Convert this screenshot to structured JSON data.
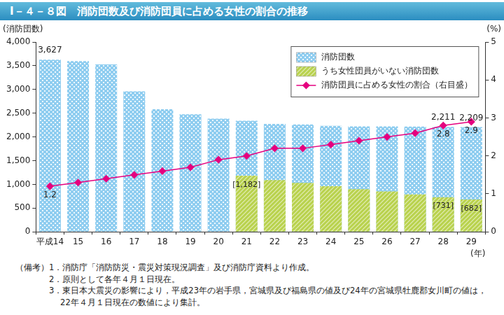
{
  "chart_data": {
    "type": "bar",
    "title": "Ⅰ－４－８図　消防団数及び消防団員に占める女性の割合の推移",
    "y_label": "(消防団数)",
    "y2_label": "(%)",
    "x_label": "(年)",
    "categories": [
      "平成14",
      "15",
      "16",
      "17",
      "18",
      "19",
      "20",
      "21",
      "22",
      "23",
      "24",
      "25",
      "26",
      "27",
      "28",
      "29"
    ],
    "series": [
      {
        "name": "消防団数",
        "type": "bar",
        "color": "#8fcdf0",
        "values": [
          3627,
          3598,
          3527,
          2961,
          2584,
          2477,
          2386,
          2341,
          2275,
          2265,
          2234,
          2224,
          2221,
          2219,
          2211,
          2209
        ],
        "data_labels": true,
        "value_labels": [
          "3,627",
          null,
          null,
          null,
          null,
          null,
          null,
          null,
          null,
          null,
          null,
          null,
          null,
          null,
          "2,211",
          "2,209"
        ]
      },
      {
        "name": "うち女性団員がいない消防団数",
        "type": "bar",
        "color": "#b9d24e",
        "values": [
          null,
          null,
          null,
          null,
          null,
          null,
          null,
          1182,
          1090,
          1030,
          960,
          900,
          850,
          790,
          731,
          682
        ],
        "data_labels": true,
        "value_labels": [
          null,
          null,
          null,
          null,
          null,
          null,
          null,
          "[1,182]",
          null,
          null,
          null,
          null,
          null,
          null,
          "[731]",
          "[682]"
        ]
      },
      {
        "name": "消防団員に占める女性の割合（右目盛）",
        "type": "line",
        "axis": "y2",
        "color": "#e5007f",
        "marker": "diamond",
        "values": [
          1.2,
          1.3,
          1.4,
          1.5,
          1.6,
          1.7,
          1.9,
          2.0,
          2.2,
          2.2,
          2.3,
          2.4,
          2.5,
          2.6,
          2.8,
          2.9
        ],
        "data_labels": true,
        "value_labels": [
          "1.2",
          null,
          null,
          null,
          null,
          null,
          null,
          null,
          null,
          null,
          null,
          null,
          null,
          null,
          "2.8",
          "2.9"
        ]
      }
    ],
    "ylim": [
      0,
      4000
    ],
    "yticks": [
      0,
      500,
      {
        "value": 1000,
        "label": "1,000"
      },
      {
        "value": 1500,
        "label": "1,500"
      },
      {
        "value": 2000,
        "label": "2,000"
      },
      {
        "value": 2500,
        "label": "2,500"
      },
      {
        "value": 3000,
        "label": "3,000"
      },
      {
        "value": 3500,
        "label": "3,500"
      },
      {
        "value": 4000,
        "label": "4,000"
      }
    ],
    "y2lim": [
      0,
      5
    ],
    "y2ticks": [
      0,
      1,
      2,
      3,
      4,
      5
    ],
    "grid": false,
    "legend": "upper right",
    "notes_label": "（備考）",
    "notes": [
      "1．消防庁「消防防災・震災対策現況調査」及び消防庁資料より作成。",
      "2．原則として各年４月１日現在。",
      "3．東日本大震災の影響により，平成23年の岩手県，宮城県及び福島県の値及び24年の宮城県牡鹿郡女川町の値は，22年４月１日現在の数値により集計。"
    ]
  }
}
